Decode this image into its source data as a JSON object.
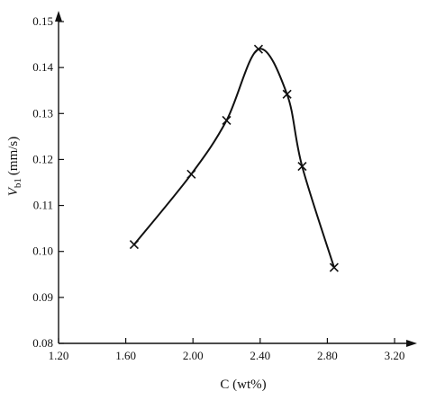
{
  "chart_data": {
    "type": "line",
    "title": "",
    "xlabel": "C (wt%)",
    "ylabel_main": "V",
    "ylabel_sub": "b1",
    "ylabel_unit": "(mm/s)",
    "xlim": [
      1.2,
      3.4
    ],
    "ylim": [
      0.08,
      0.15
    ],
    "x_ticks": [
      "1.20",
      "1.60",
      "2.00",
      "2.40",
      "2.80",
      "3.20"
    ],
    "y_ticks": [
      "0.08",
      "0.09",
      "0.10",
      "0.11",
      "0.12",
      "0.13",
      "0.14",
      "0.15"
    ],
    "grid": false,
    "series": [
      {
        "marker": "x",
        "x": [
          1.65,
          1.99,
          2.2,
          2.39,
          2.56,
          2.65,
          2.84
        ],
        "y": [
          0.1015,
          0.1168,
          0.1285,
          0.144,
          0.1342,
          0.1185,
          0.0965
        ]
      }
    ]
  }
}
